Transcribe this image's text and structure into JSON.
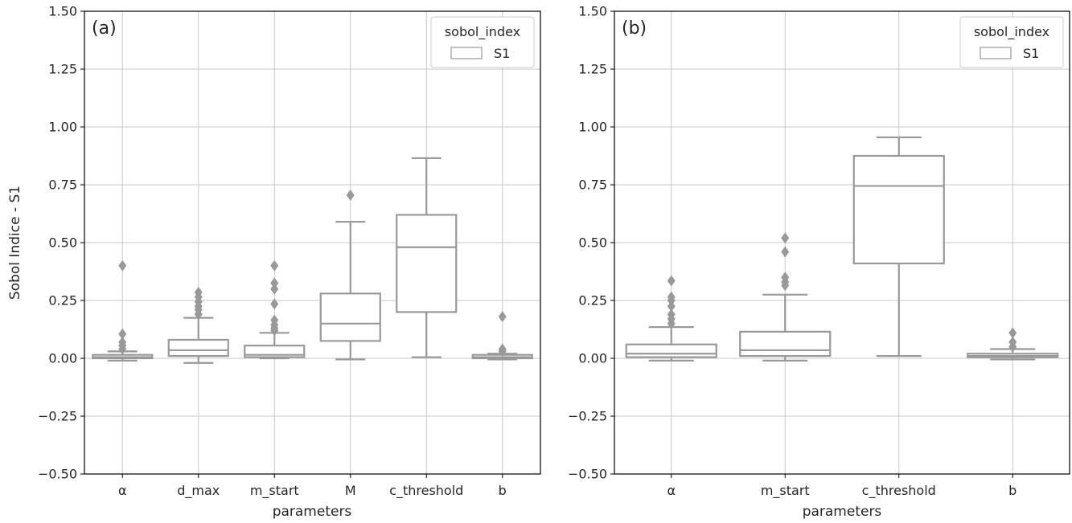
{
  "colors": {
    "box": "#999999",
    "grid": "#c8c8c8",
    "spine": "#000000"
  },
  "chart_data": [
    {
      "type": "box",
      "panel_label": "(a)",
      "xlabel": "parameters",
      "ylabel": "Sobol Indice - S1",
      "ylim": [
        -0.5,
        1.5
      ],
      "yticks": [
        "1.50",
        "1.25",
        "1.00",
        "0.75",
        "0.50",
        "0.25",
        "0.00",
        "−0.25",
        "−0.50"
      ],
      "ytick_values": [
        1.5,
        1.25,
        1.0,
        0.75,
        0.5,
        0.25,
        0.0,
        -0.25,
        -0.5
      ],
      "grid": true,
      "legend": {
        "title": "sobol_index",
        "entries": [
          "S1"
        ],
        "position": "top-right"
      },
      "categories": [
        "α",
        "d_max",
        "m_start",
        "M",
        "c_threshold",
        "b"
      ],
      "boxes": [
        {
          "whislo": -0.01,
          "q1": 0.0,
          "med": 0.005,
          "q3": 0.015,
          "whishi": 0.03,
          "fliers": [
            0.4,
            0.105,
            0.07,
            0.055,
            0.04
          ]
        },
        {
          "whislo": -0.02,
          "q1": 0.01,
          "med": 0.035,
          "q3": 0.08,
          "whishi": 0.175,
          "fliers": [
            0.285,
            0.265,
            0.245,
            0.225,
            0.21,
            0.19
          ]
        },
        {
          "whislo": 0.0,
          "q1": 0.005,
          "med": 0.015,
          "q3": 0.055,
          "whishi": 0.11,
          "fliers": [
            0.4,
            0.325,
            0.3,
            0.235,
            0.165,
            0.145,
            0.13,
            0.12
          ]
        },
        {
          "whislo": -0.005,
          "q1": 0.075,
          "med": 0.15,
          "q3": 0.28,
          "whishi": 0.59,
          "fliers": [
            0.705
          ]
        },
        {
          "whislo": 0.005,
          "q1": 0.2,
          "med": 0.48,
          "q3": 0.62,
          "whishi": 0.865,
          "fliers": []
        },
        {
          "whislo": -0.005,
          "q1": 0.0,
          "med": 0.005,
          "q3": 0.015,
          "whishi": 0.02,
          "fliers": [
            0.18,
            0.04,
            0.03
          ]
        }
      ]
    },
    {
      "type": "box",
      "panel_label": "(b)",
      "xlabel": "parameters",
      "ylabel": "",
      "ylim": [
        -0.5,
        1.5
      ],
      "yticks": [
        "1.50",
        "1.25",
        "1.00",
        "0.75",
        "0.50",
        "0.25",
        "0.00",
        "−0.25",
        "−0.50"
      ],
      "ytick_values": [
        1.5,
        1.25,
        1.0,
        0.75,
        0.5,
        0.25,
        0.0,
        -0.25,
        -0.5
      ],
      "grid": true,
      "legend": {
        "title": "sobol_index",
        "entries": [
          "S1"
        ],
        "position": "top-right"
      },
      "categories": [
        "α",
        "m_start",
        "c_threshold",
        "b"
      ],
      "boxes": [
        {
          "whislo": -0.01,
          "q1": 0.005,
          "med": 0.02,
          "q3": 0.06,
          "whishi": 0.135,
          "fliers": [
            0.335,
            0.265,
            0.25,
            0.225,
            0.19,
            0.17,
            0.15
          ]
        },
        {
          "whislo": -0.01,
          "q1": 0.01,
          "med": 0.035,
          "q3": 0.115,
          "whishi": 0.275,
          "fliers": [
            0.52,
            0.46,
            0.35,
            0.33,
            0.315
          ]
        },
        {
          "whislo": 0.01,
          "q1": 0.41,
          "med": 0.745,
          "q3": 0.875,
          "whishi": 0.955,
          "fliers": []
        },
        {
          "whislo": -0.005,
          "q1": 0.005,
          "med": 0.01,
          "q3": 0.02,
          "whishi": 0.04,
          "fliers": [
            0.11,
            0.07,
            0.05
          ]
        }
      ]
    }
  ]
}
